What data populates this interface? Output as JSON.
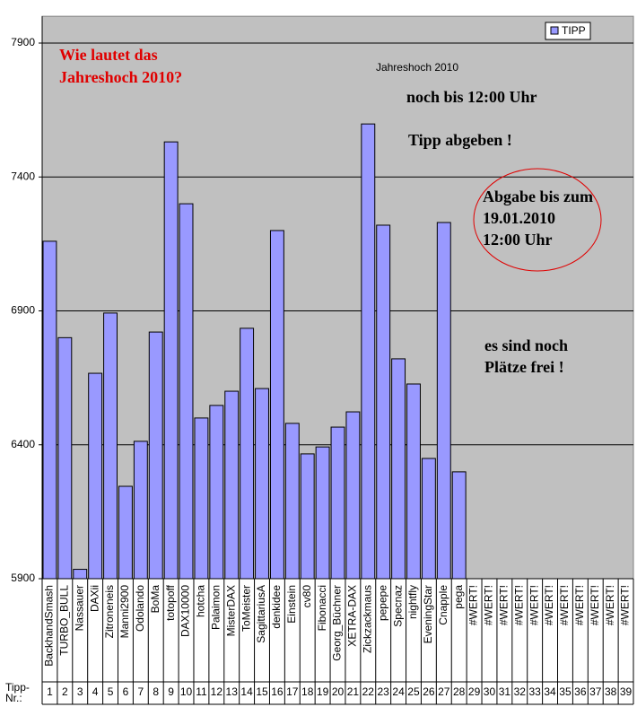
{
  "chart_data": {
    "type": "bar",
    "title": "Jahreshoch 2010",
    "categories": [
      "BackhandSmash",
      "TURBO_BULL",
      "Nassauer",
      "DAXii",
      "Zitroneneis",
      "Manni2900",
      "Odolando",
      "BoMa",
      "totopoff",
      "DAX10000",
      "hotcha",
      "Palaimon",
      "MisterDAX",
      "ToMeister",
      "SagittariusA",
      "denkidee",
      "Einstein",
      "cv80",
      "Fibonacci",
      "Georg_Büchner",
      "XETRA-DAX",
      "Zickzackmaus",
      "pepepe",
      "Specnaz",
      "nightfly",
      "EveningStar",
      "Cnapple",
      "pega",
      "#WERT!",
      "#WERT!",
      "#WERT!",
      "#WERT!",
      "#WERT!",
      "#WERT!",
      "#WERT!",
      "#WERT!",
      "#WERT!",
      "#WERT!",
      "#WERT!"
    ],
    "series": [
      {
        "name": "TIPP",
        "color": "#9999ff",
        "values": [
          7160,
          6800,
          5935,
          6667,
          6892,
          6245,
          6413,
          6821,
          7531,
          7300,
          6500,
          6547,
          6600,
          6835,
          6610,
          7200,
          6480,
          6366,
          6392,
          6466,
          6523,
          7598,
          7220,
          6721,
          6627,
          6349,
          7230,
          6299,
          null,
          null,
          null,
          null,
          null,
          null,
          null,
          null,
          null,
          null,
          null
        ]
      }
    ],
    "tipp_nr_label": [
      "Tipp-",
      "Nr.:"
    ],
    "tipp_nr": [
      1,
      2,
      3,
      4,
      5,
      6,
      7,
      8,
      9,
      10,
      11,
      12,
      13,
      14,
      15,
      16,
      17,
      18,
      19,
      20,
      21,
      22,
      23,
      24,
      25,
      26,
      27,
      28,
      29,
      30,
      31,
      32,
      33,
      34,
      35,
      36,
      37,
      38,
      39
    ],
    "ylim": [
      5900,
      8000
    ],
    "yticks": [
      5900,
      6400,
      6900,
      7400,
      7900
    ],
    "grid": true,
    "legend": "top-right",
    "annotations": {
      "question": [
        "Wie lautet das",
        "Jahreshoch 2010?"
      ],
      "until": "noch bis 12:00 Uhr",
      "call": "Tipp abgeben !",
      "deadline": [
        "Abgabe bis zum",
        "19.01.2010",
        "12:00 Uhr"
      ],
      "places": [
        "es sind noch",
        "Plätze frei !"
      ]
    }
  }
}
